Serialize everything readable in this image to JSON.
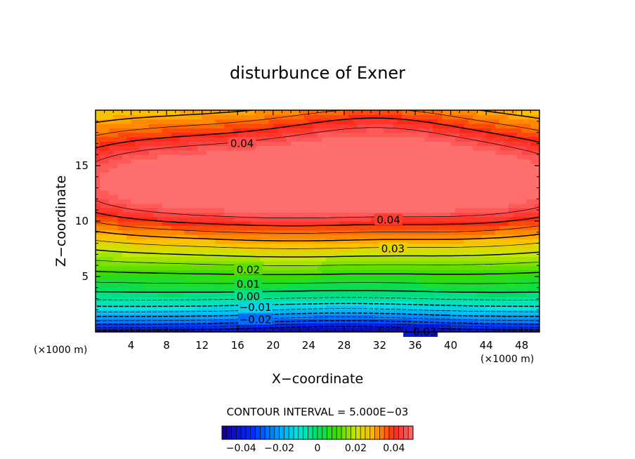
{
  "chart_data": {
    "type": "heatmap",
    "title": "disturbunce of Exner",
    "xlabel": "X−coordinate",
    "ylabel": "Z−coordinate",
    "x_unit_label_left": "(×1000 m)",
    "x_unit_label_right": "(×1000 m)",
    "x_ticks": [
      4,
      8,
      12,
      16,
      20,
      24,
      28,
      32,
      36,
      40,
      44,
      48
    ],
    "y_ticks": [
      5,
      10,
      15
    ],
    "xlim": [
      0,
      50
    ],
    "ylim": [
      0,
      20
    ],
    "field_description": "Exner function disturbance; maximum near x=20-32, z=13-14; minimum near surface",
    "max_value": 0.047,
    "min_value": -0.04,
    "contour_interval_text": "CONTOUR INTERVAL = 5.000E−03",
    "contour_labels": [
      {
        "text": "0.04",
        "x": 16.5,
        "z": 17.0
      },
      {
        "text": "0.04",
        "x": 33.0,
        "z": 10.1
      },
      {
        "text": "0.03",
        "x": 33.5,
        "z": 7.5
      },
      {
        "text": "0.02",
        "x": 17.2,
        "z": 5.6
      },
      {
        "text": "0.01",
        "x": 17.2,
        "z": 4.3
      },
      {
        "text": "0.00",
        "x": 17.2,
        "z": 3.2
      },
      {
        "text": "−0.01",
        "x": 18.0,
        "z": 2.2
      },
      {
        "text": "−0.02",
        "x": 18.0,
        "z": 1.1
      },
      {
        "text": "−0.03",
        "x": 36.6,
        "z": 0.0
      }
    ],
    "colorbar": {
      "range": [
        -0.05,
        0.05
      ],
      "tick_values": [
        -0.04,
        -0.02,
        0,
        0.02,
        0.04
      ],
      "tick_labels": [
        "−0.04",
        "−0.02",
        "0",
        "0.02",
        "0.04"
      ]
    }
  }
}
